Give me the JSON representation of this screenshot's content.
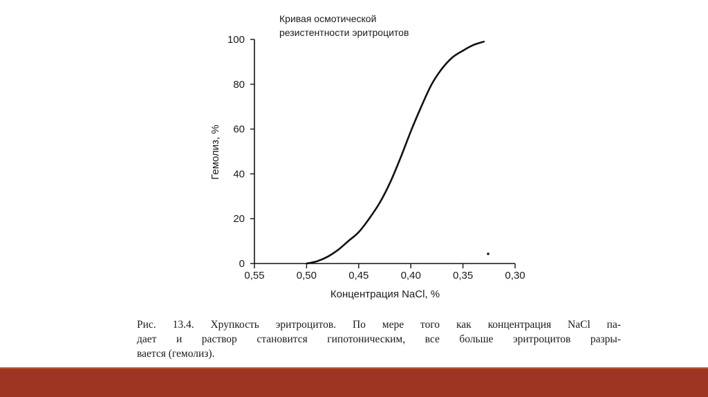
{
  "chart_data": {
    "type": "line",
    "title_lines": [
      "Кривая осмотической",
      "резистентности эритроцитов"
    ],
    "xlabel": "Концентрация NaCl, %",
    "ylabel": "Гемолиз, %",
    "x_ticks": [
      "0,55",
      "0,50",
      "0,45",
      "0,40",
      "0,35",
      "0,30"
    ],
    "x_tick_values": [
      0.55,
      0.5,
      0.45,
      0.4,
      0.35,
      0.3
    ],
    "y_ticks": [
      "0",
      "20",
      "40",
      "60",
      "80",
      "100"
    ],
    "y_tick_values": [
      0,
      20,
      40,
      60,
      80,
      100
    ],
    "xlim": [
      0.55,
      0.3
    ],
    "ylim": [
      0,
      100
    ],
    "x_reversed": true,
    "grid": false,
    "series": [
      {
        "x": [
          0.5,
          0.49,
          0.48,
          0.47,
          0.46,
          0.45,
          0.44,
          0.43,
          0.42,
          0.41,
          0.4,
          0.39,
          0.38,
          0.37,
          0.36,
          0.35,
          0.34,
          0.33
        ],
        "y": [
          0,
          1,
          3,
          6,
          10,
          14,
          20,
          27,
          36,
          47,
          59,
          70,
          80,
          87,
          92,
          95,
          97.5,
          99
        ]
      }
    ]
  },
  "caption": {
    "line1": "Рис. 13.4. Хрупкость эритроцитов. По мере того как концентрация NaCl па-",
    "line2": "дает и раствор становится гипотоническим, все больше эритроцитов разры-",
    "line3": "вается (гемолиз)."
  },
  "colors": {
    "curve": "#111111",
    "axis": "#111111",
    "text": "#1a1a1a",
    "bottom_bar": "#9c3522"
  }
}
